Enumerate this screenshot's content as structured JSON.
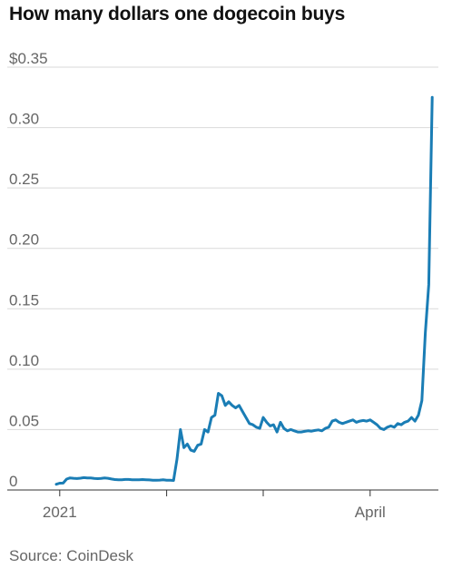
{
  "chart_data": {
    "type": "line",
    "title": "How many dollars one dogecoin buys",
    "source": "Source: CoinDesk",
    "ylim": [
      0,
      0.35
    ],
    "y_ticks": [
      {
        "value": 0,
        "label": "0"
      },
      {
        "value": 0.05,
        "label": "0.05"
      },
      {
        "value": 0.1,
        "label": "0.10"
      },
      {
        "value": 0.15,
        "label": "0.15"
      },
      {
        "value": 0.2,
        "label": "0.20"
      },
      {
        "value": 0.25,
        "label": "0.25"
      },
      {
        "value": 0.3,
        "label": "0.30"
      },
      {
        "value": 0.35,
        "label": "$0.35"
      }
    ],
    "x_ticks": [
      {
        "date": "2021-01-01",
        "label": "2021"
      },
      {
        "date": "2021-02-01",
        "label": ""
      },
      {
        "date": "2021-03-01",
        "label": ""
      },
      {
        "date": "2021-04-01",
        "label": "April"
      }
    ],
    "x_range": [
      "2020-12-31",
      "2021-04-20"
    ],
    "grid": true,
    "line_color": "#1a7db5",
    "series": [
      {
        "x": [
          "2020-12-31",
          "2021-01-01",
          "2021-01-02",
          "2021-01-03",
          "2021-01-04",
          "2021-01-05",
          "2021-01-06",
          "2021-01-07",
          "2021-01-08",
          "2021-01-09",
          "2021-01-10",
          "2021-01-11",
          "2021-01-12",
          "2021-01-13",
          "2021-01-14",
          "2021-01-15",
          "2021-01-16",
          "2021-01-17",
          "2021-01-18",
          "2021-01-19",
          "2021-01-20",
          "2021-01-21",
          "2021-01-22",
          "2021-01-23",
          "2021-01-24",
          "2021-01-25",
          "2021-01-26",
          "2021-01-27",
          "2021-01-28",
          "2021-01-29",
          "2021-01-30",
          "2021-01-31",
          "2021-02-01",
          "2021-02-02",
          "2021-02-03",
          "2021-02-04",
          "2021-02-05",
          "2021-02-06",
          "2021-02-07",
          "2021-02-08",
          "2021-02-09",
          "2021-02-10",
          "2021-02-11",
          "2021-02-12",
          "2021-02-13",
          "2021-02-14",
          "2021-02-15",
          "2021-02-16",
          "2021-02-17",
          "2021-02-18",
          "2021-02-19",
          "2021-02-20",
          "2021-02-21",
          "2021-02-22",
          "2021-02-23",
          "2021-02-24",
          "2021-02-25",
          "2021-02-26",
          "2021-02-27",
          "2021-02-28",
          "2021-03-01",
          "2021-03-02",
          "2021-03-03",
          "2021-03-04",
          "2021-03-05",
          "2021-03-06",
          "2021-03-07",
          "2021-03-08",
          "2021-03-09",
          "2021-03-10",
          "2021-03-11",
          "2021-03-12",
          "2021-03-13",
          "2021-03-14",
          "2021-03-15",
          "2021-03-16",
          "2021-03-17",
          "2021-03-18",
          "2021-03-19",
          "2021-03-20",
          "2021-03-21",
          "2021-03-22",
          "2021-03-23",
          "2021-03-24",
          "2021-03-25",
          "2021-03-26",
          "2021-03-27",
          "2021-03-28",
          "2021-03-29",
          "2021-03-30",
          "2021-03-31",
          "2021-04-01",
          "2021-04-02",
          "2021-04-03",
          "2021-04-04",
          "2021-04-05",
          "2021-04-06",
          "2021-04-07",
          "2021-04-08",
          "2021-04-09",
          "2021-04-10",
          "2021-04-11",
          "2021-04-12",
          "2021-04-13",
          "2021-04-14",
          "2021-04-15",
          "2021-04-16",
          "2021-04-17",
          "2021-04-18",
          "2021-04-19"
        ],
        "y": [
          0.0047,
          0.0056,
          0.0057,
          0.009,
          0.01,
          0.0097,
          0.0095,
          0.0098,
          0.0102,
          0.01,
          0.0099,
          0.0096,
          0.0094,
          0.0096,
          0.0099,
          0.0097,
          0.0091,
          0.0086,
          0.0084,
          0.0085,
          0.0087,
          0.0087,
          0.0085,
          0.0084,
          0.0085,
          0.0086,
          0.0085,
          0.0083,
          0.008,
          0.0081,
          0.0082,
          0.0084,
          0.0081,
          0.008,
          0.0079,
          0.0255,
          0.05,
          0.035,
          0.038,
          0.033,
          0.032,
          0.037,
          0.038,
          0.05,
          0.048,
          0.06,
          0.062,
          0.08,
          0.078,
          0.07,
          0.073,
          0.07,
          0.068,
          0.07,
          0.065,
          0.06,
          0.055,
          0.054,
          0.052,
          0.051,
          0.06,
          0.056,
          0.053,
          0.054,
          0.048,
          0.056,
          0.051,
          0.049,
          0.05,
          0.049,
          0.048,
          0.048,
          0.0485,
          0.049,
          0.0487,
          0.0493,
          0.0497,
          0.049,
          0.051,
          0.052,
          0.057,
          0.058,
          0.056,
          0.055,
          0.056,
          0.057,
          0.058,
          0.056,
          0.057,
          0.0575,
          0.057,
          0.058,
          0.056,
          0.054,
          0.051,
          0.05,
          0.052,
          0.053,
          0.052,
          0.055,
          0.054,
          0.056,
          0.057,
          0.06,
          0.057,
          0.062,
          0.074,
          0.13,
          0.17,
          0.325
        ]
      }
    ]
  }
}
